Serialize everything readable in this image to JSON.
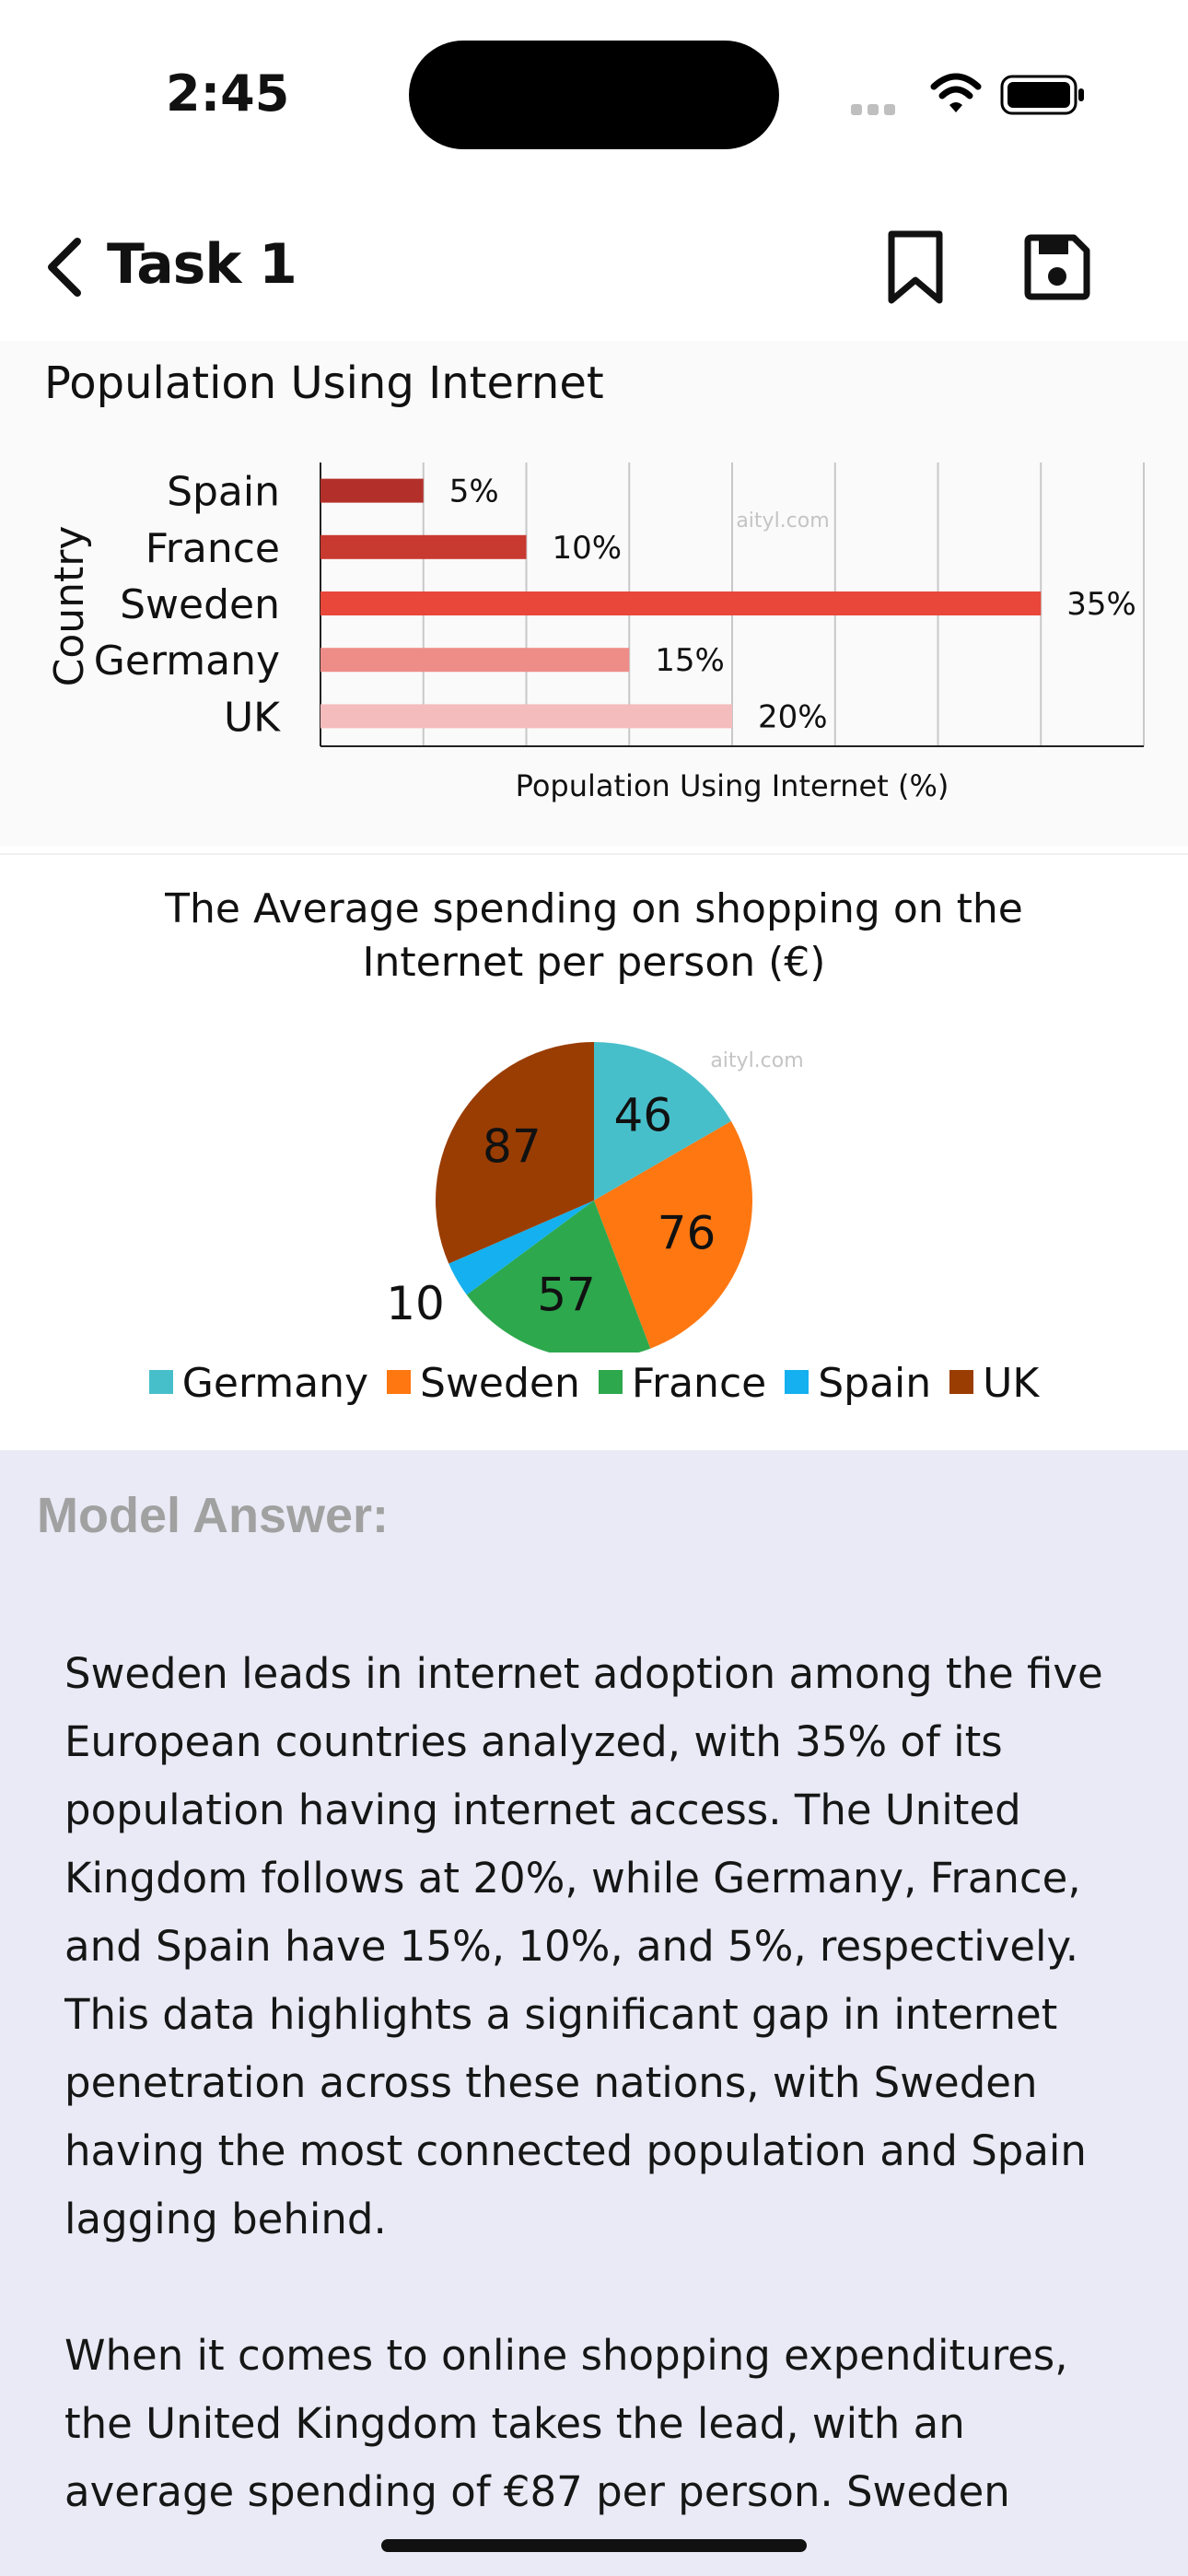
{
  "status_bar": {
    "time": "2:45"
  },
  "nav": {
    "title": "Task 1"
  },
  "bar_chart_section": {
    "heading": "Population Using Internet",
    "watermark": "aityl.com"
  },
  "pie_section": {
    "title": "The Average spending on shopping on the Internet per person (€)",
    "watermark": "aityl.com"
  },
  "chart_data": [
    {
      "type": "bar",
      "orientation": "horizontal",
      "categories": [
        "Spain",
        "France",
        "Sweden",
        "Germany",
        "UK"
      ],
      "values": [
        5,
        10,
        35,
        15,
        20
      ],
      "data_labels": [
        "5%",
        "10%",
        "35%",
        "15%",
        "20%"
      ],
      "colors": [
        "#b3302a",
        "#c8392f",
        "#e8473a",
        "#ee8c88",
        "#f4bcbc"
      ],
      "xlabel": "Population Using Internet (%)",
      "ylabel": "Country",
      "xlim": [
        0,
        40
      ],
      "grid": true
    },
    {
      "type": "pie",
      "labels": [
        "Germany",
        "Sweden",
        "France",
        "Spain",
        "UK"
      ],
      "values": [
        46,
        76,
        57,
        10,
        87
      ],
      "colors": [
        "#47bfca",
        "#ff7711",
        "#2da84d",
        "#14b0ef",
        "#9a3d02"
      ],
      "legend": "bottom"
    }
  ],
  "answer": {
    "title": "Model Answer:",
    "paragraphs": [
      "Sweden leads in internet adoption among the five European countries analyzed, with 35% of its population having internet access. The United Kingdom follows at 20%, while Germany, France, and Spain have 15%, 10%, and 5%, respectively. This data highlights a significant gap in internet penetration across these nations, with Sweden having the most connected population and Spain lagging behind.",
      "When it comes to online shopping expenditures, the United Kingdom takes the lead, with an average spending of €87 per person. Sweden"
    ]
  }
}
